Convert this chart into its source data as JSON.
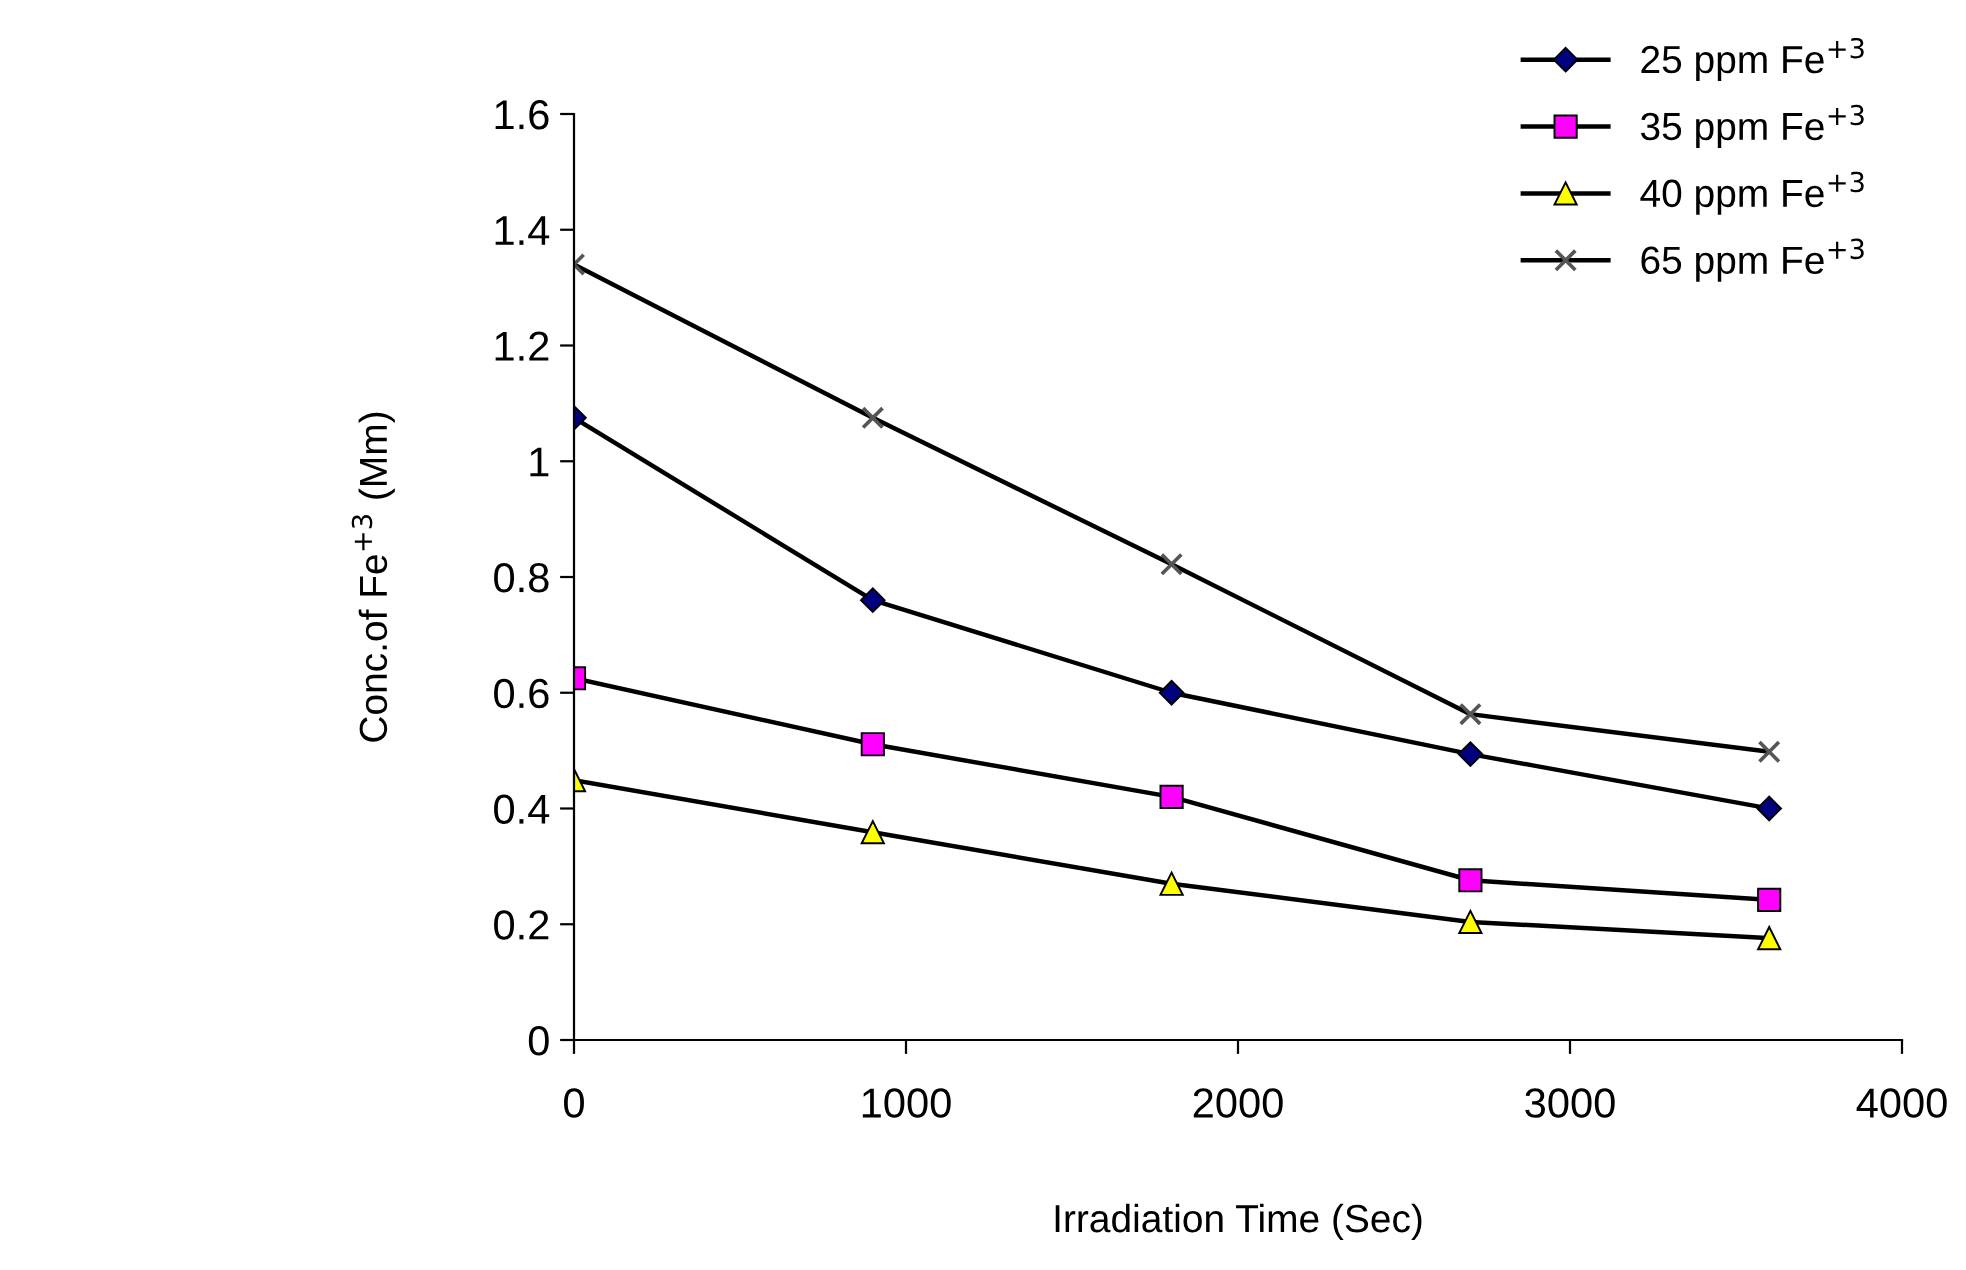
{
  "chart_data": {
    "type": "line",
    "xlabel": "Irradiation Time (Sec)",
    "ylabel": "Conc.of Fe$^{+3}$ (Mm)",
    "x": [
      0,
      900,
      1800,
      2700,
      3600
    ],
    "series": [
      {
        "name": "25 ppm Fe$^{+3}$",
        "color": "#000080",
        "marker": "diamond",
        "values": [
          1.075,
          0.76,
          0.6,
          0.494,
          0.4
        ]
      },
      {
        "name": "35 ppm Fe$^{+3}$",
        "color": "#ff00ff",
        "marker": "square",
        "values": [
          0.625,
          0.511,
          0.42,
          0.276,
          0.242
        ]
      },
      {
        "name": "40 ppm Fe$^{+3}$",
        "color": "#ffff00",
        "marker": "triangle",
        "values": [
          0.449,
          0.359,
          0.27,
          0.204,
          0.176
        ]
      },
      {
        "name": "65 ppm Fe$^{+3}$",
        "color": "#555555",
        "marker": "cross",
        "values": [
          1.34,
          1.075,
          0.822,
          0.563,
          0.498
        ]
      }
    ],
    "xlim": [
      0,
      4000
    ],
    "xticks": [
      0,
      1000,
      2000,
      3000,
      4000
    ],
    "ylim": [
      0,
      1.6
    ],
    "yticks": [
      0,
      0.2,
      0.4,
      0.6,
      0.8,
      1,
      1.2,
      1.4,
      1.6
    ],
    "grid": false,
    "legend": "top right",
    "line_style": "solid"
  }
}
